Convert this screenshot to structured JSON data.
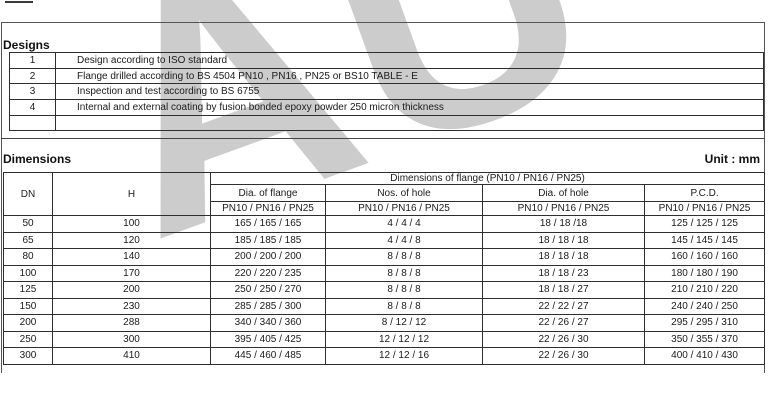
{
  "page": {
    "watermark_text": "AU",
    "watermark_color": "#cccccc",
    "line_color": "#444444"
  },
  "designs": {
    "title": "Designs",
    "rows": [
      {
        "no": "1",
        "text": "Design according to ISO standard"
      },
      {
        "no": "2",
        "text": "Flange drilled according to BS 4504 PN10 , PN16 , PN25 or BS10 TABLE - E"
      },
      {
        "no": "3",
        "text": "Inspection and test according to BS 6755"
      },
      {
        "no": "4",
        "text": "Internal and external coating by fusion bonded epoxy powder 250 micron thickness"
      },
      {
        "no": "",
        "text": ""
      }
    ]
  },
  "dimensions": {
    "title": "Dimensions",
    "unit_label": "Unit : mm",
    "table": {
      "dn_header": "DN",
      "h_header": "H",
      "group_header": "Dimensions of flange (PN10 / PN16 / PN25)",
      "sub_headers": [
        "Dia. of flange",
        "Nos. of hole",
        "Dia. of hole",
        "P.C.D."
      ],
      "pn_header": "PN10 / PN16 / PN25",
      "rows": [
        [
          "50",
          "100",
          "165 / 165 / 165",
          "4 / 4 / 4",
          "18 / 18 /18",
          "125 / 125 / 125"
        ],
        [
          "65",
          "120",
          "185 / 185 / 185",
          "4 / 4 / 8",
          "18 / 18 / 18",
          "145 / 145 / 145"
        ],
        [
          "80",
          "140",
          "200 / 200 / 200",
          "8 / 8 / 8",
          "18 / 18 / 18",
          "160 / 160 / 160"
        ],
        [
          "100",
          "170",
          "220 / 220 / 235",
          "8 / 8 / 8",
          "18 / 18 / 23",
          "180 / 180 / 190"
        ],
        [
          "125",
          "200",
          "250 / 250 / 270",
          "8 / 8 / 8",
          "18 / 18 / 27",
          "210 / 210 / 220"
        ],
        [
          "150",
          "230",
          "285 / 285 / 300",
          "8 / 8 / 8",
          "22 / 22 / 27",
          "240 / 240 / 250"
        ],
        [
          "200",
          "288",
          "340 / 340 / 360",
          "8 / 12 / 12",
          "22 / 26 / 27",
          "295 / 295 / 310"
        ],
        [
          "250",
          "300",
          "395 / 405 / 425",
          "12 / 12 / 12",
          "22 / 26 / 30",
          "350 / 355 / 370"
        ],
        [
          "300",
          "410",
          "445 / 460 / 485",
          "12 / 12 / 16",
          "22 / 26 / 30",
          "400 / 410 / 430"
        ]
      ]
    }
  }
}
